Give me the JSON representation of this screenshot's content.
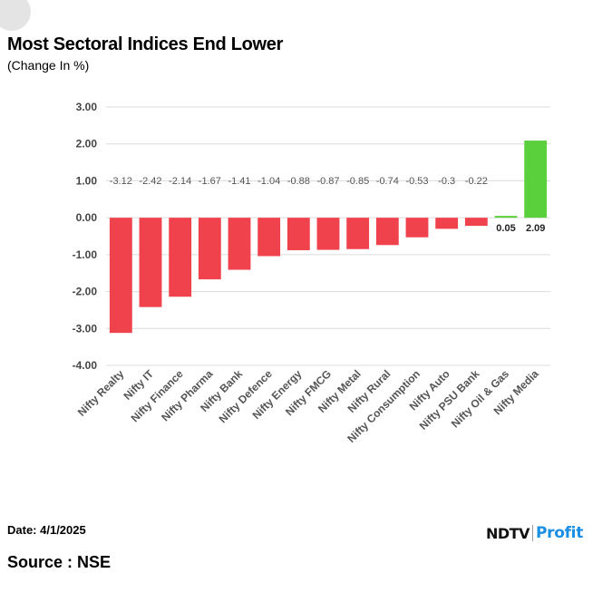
{
  "chart_data": {
    "type": "bar",
    "title": "Most Sectoral Indices End Lower",
    "subtitle": "(Change In %)",
    "categories": [
      "Nifty Realty",
      "Nifty IT",
      "Nifty Finance",
      "Nifty Pharma",
      "Nifty Bank",
      "Nifty Defence",
      "Nifty Energy",
      "Nifty FMCG",
      "Nifty Metal",
      "Nifty Rural",
      "Nifty Consumption",
      "Nifty Auto",
      "Nifty PSU Bank",
      "Nifty Oil & Gas",
      "Nifty Media"
    ],
    "values": [
      -3.12,
      -2.42,
      -2.14,
      -1.67,
      -1.41,
      -1.04,
      -0.88,
      -0.87,
      -0.85,
      -0.74,
      -0.53,
      -0.3,
      -0.22,
      0.05,
      2.09
    ],
    "ylim": [
      -4,
      3
    ],
    "yticks": [
      "3.00",
      "2.00",
      "1.00",
      "0.00",
      "-1.00",
      "-2.00",
      "-3.00",
      "-4.00"
    ],
    "grid": true,
    "colors": {
      "negative": "#f0424c",
      "positive": "#5ad13c"
    }
  },
  "footer": {
    "date": "Date: 4/1/2025",
    "source": "Source : NSE",
    "logo_left": "NDTV",
    "logo_right": "Profit"
  }
}
